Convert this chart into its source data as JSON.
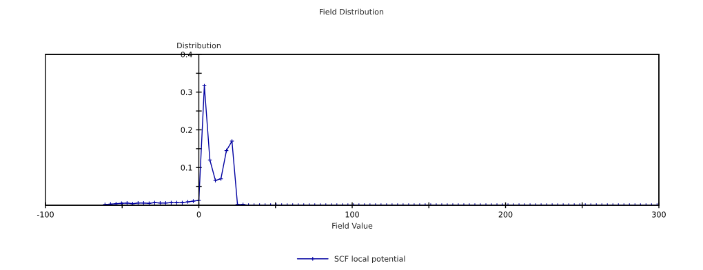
{
  "chart_data": {
    "type": "line",
    "title": "Field Distribution",
    "xlabel": "Field Value",
    "ylabel": "Distribution",
    "x": [
      -61.2,
      -57.6,
      -54,
      -50.4,
      -46.8,
      -43.2,
      -39.6,
      -36,
      -32.4,
      -28.8,
      -25.2,
      -21.6,
      -18,
      -14.4,
      -10.8,
      -7.2,
      -3.6,
      0,
      3.6,
      7.2,
      10.8,
      14.4,
      18,
      21.6,
      25.2,
      28.8,
      32.4,
      36,
      39.6,
      43.2,
      46.8,
      50.4,
      54,
      57.6,
      61.2,
      64.8,
      68.4,
      72,
      75.6,
      79.2,
      82.8,
      86.4,
      90,
      93.6,
      97.2,
      100.8,
      104.4,
      108,
      111.6,
      115.2,
      118.8,
      122.4,
      126,
      129.6,
      133.2,
      136.8,
      140.4,
      144,
      147.6,
      151.2,
      154.8,
      158.4,
      162,
      165.6,
      169.2,
      172.8,
      176.4,
      180,
      183.6,
      187.2,
      190.8,
      194.4,
      198,
      201.6,
      205.2,
      208.8,
      212.4,
      216,
      219.6,
      223.2,
      226.8,
      230.4,
      234,
      237.6,
      241.2,
      244.8,
      248.4,
      252,
      255.6,
      259.2,
      262.8,
      266.4,
      270,
      273.6,
      277.2,
      280.8,
      284.4,
      288,
      291.6,
      295.2,
      298.8
    ],
    "series": [
      {
        "name": "SCF local potential",
        "color": "#0000a0",
        "values": [
          0.002,
          0.003,
          0.004,
          0.005,
          0.006,
          0.004,
          0.006,
          0.006,
          0.005,
          0.007,
          0.006,
          0.006,
          0.007,
          0.007,
          0.007,
          0.009,
          0.011,
          0.013,
          0.317,
          0.12,
          0.066,
          0.07,
          0.145,
          0.17,
          0.002,
          0.002,
          0,
          0,
          0,
          0,
          0,
          0,
          0,
          0,
          0,
          0,
          0,
          0,
          0,
          0,
          0,
          0,
          0,
          0,
          0,
          0,
          0,
          0,
          0,
          0,
          0,
          0,
          0,
          0,
          0,
          0,
          0,
          0,
          0,
          0,
          0,
          0,
          0,
          0,
          0,
          0,
          0,
          0,
          0,
          0,
          0,
          0,
          0,
          0,
          0,
          0,
          0,
          0,
          0,
          0,
          0,
          0,
          0,
          0,
          0,
          0,
          0,
          0,
          0,
          0,
          0,
          0,
          0,
          0,
          0,
          0,
          0,
          0,
          0,
          0,
          0
        ]
      }
    ],
    "xlim": [
      -100,
      300
    ],
    "ylim": [
      0,
      0.4
    ],
    "xticks": [
      -100,
      {
        "value": -50,
        "label": null
      },
      0,
      {
        "value": 50,
        "label": null
      },
      100,
      {
        "value": 150,
        "label": null
      },
      200,
      {
        "value": 250,
        "label": null
      },
      300
    ],
    "yticks": [
      {
        "value": 0.05,
        "label": null
      },
      0.1,
      {
        "value": 0.15,
        "label": null
      },
      0.2,
      {
        "value": 0.25,
        "label": null
      },
      0.3,
      {
        "value": 0.35,
        "label": null
      },
      0.4
    ],
    "grid": false,
    "legend": "bottom",
    "marker": "cross",
    "line_style": "solid"
  }
}
